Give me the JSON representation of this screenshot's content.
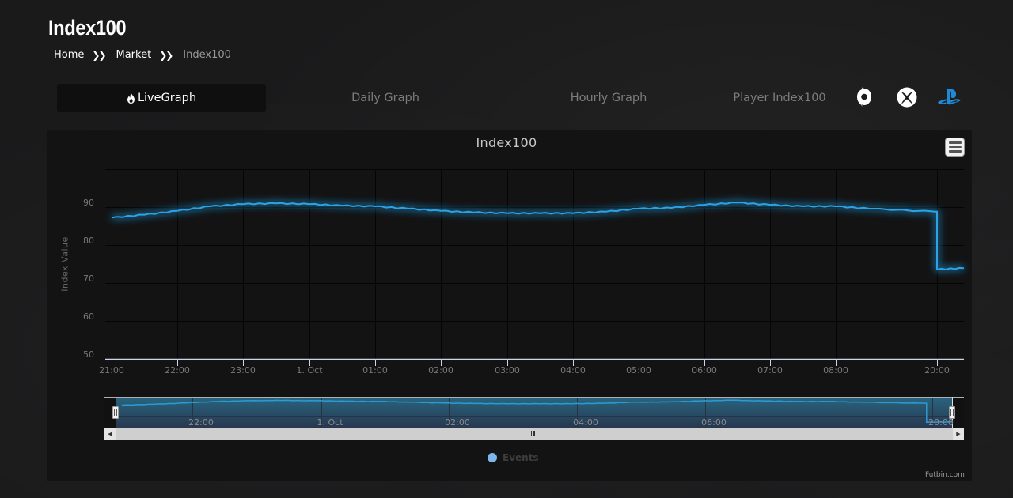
{
  "page": {
    "title": "Index100",
    "breadcrumb": [
      {
        "label": "Home"
      },
      {
        "label": "Market"
      },
      {
        "label": "Index100"
      }
    ]
  },
  "tabs": [
    {
      "label": "LiveGraph",
      "icon": "flame-icon",
      "active": true
    },
    {
      "label": "Daily Graph",
      "active": false
    },
    {
      "label": "Hourly Graph",
      "active": false
    },
    {
      "label": "Player Index100",
      "active": false
    }
  ],
  "platforms": [
    {
      "name": "origin-pc",
      "icon": "origin-icon",
      "color": "#ffffff"
    },
    {
      "name": "xbox",
      "icon": "xbox-icon",
      "color": "#ffffff"
    },
    {
      "name": "playstation",
      "icon": "playstation-icon",
      "color": "#1e8ad6",
      "active": true
    }
  ],
  "colors": {
    "line": "#2aa4e8",
    "glow": "#1fb8d8",
    "legend_dot": "#7cb5ec",
    "navigator_fill": "#2b3f52"
  },
  "chart_data": {
    "type": "line",
    "title": "Index100",
    "xlabel": "",
    "ylabel": "Index Value",
    "ylim": [
      50,
      100
    ],
    "yticks": [
      50,
      60,
      70,
      80,
      90
    ],
    "grid": true,
    "x_tick_labels": [
      "21:00",
      "22:00",
      "23:00",
      "1. Oct",
      "01:00",
      "02:00",
      "03:00",
      "04:00",
      "05:00",
      "06:00",
      "07:00",
      "08:00",
      "20:00"
    ],
    "legend": {
      "position": "bottom-center",
      "entries": [
        "Events"
      ]
    },
    "navigator_tick_labels": [
      "22:00",
      "1. Oct",
      "02:00",
      "04:00",
      "06:00",
      "20:00"
    ],
    "series": [
      {
        "name": "Index100",
        "x": [
          "21:00",
          "21:30",
          "22:00",
          "22:30",
          "23:00",
          "23:30",
          "1. Oct",
          "00:30",
          "01:00",
          "01:30",
          "02:00",
          "02:30",
          "03:00",
          "03:30",
          "04:00",
          "04:30",
          "05:00",
          "05:30",
          "06:00",
          "06:30",
          "07:00",
          "07:30",
          "08:00",
          "08:30",
          "19:50",
          "20:00",
          "20:20"
        ],
        "values": [
          87.2,
          88.0,
          89.0,
          90.2,
          90.8,
          91.0,
          90.8,
          90.4,
          90.2,
          89.6,
          89.0,
          88.6,
          88.4,
          88.4,
          88.4,
          88.8,
          89.6,
          89.8,
          90.6,
          91.2,
          90.6,
          90.2,
          90.2,
          89.6,
          88.8,
          73.6,
          73.9
        ]
      }
    ],
    "credits": "Futbin.com"
  }
}
